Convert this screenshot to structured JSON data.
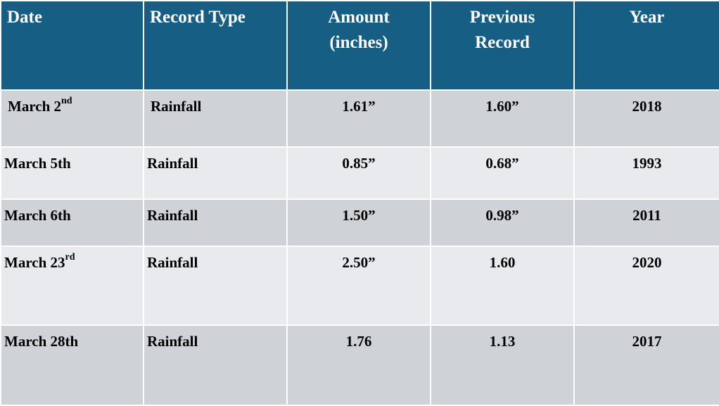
{
  "table": {
    "headers": {
      "date": "Date",
      "record_type": "Record Type",
      "amount_line1": "Amount",
      "amount_line2": "(inches)",
      "previous_line1": "Previous",
      "previous_line2": "Record",
      "year": "Year"
    },
    "rows": [
      {
        "date_main": "March 2",
        "date_suffix": "nd",
        "record_type": "Rainfall",
        "amount": "1.61”",
        "previous": "1.60”",
        "year": "2018"
      },
      {
        "date_main": "March 5th",
        "date_suffix": "",
        "record_type": "Rainfall",
        "amount": "0.85”",
        "previous": "0.68”",
        "year": "1993"
      },
      {
        "date_main": "March 6th",
        "date_suffix": "",
        "record_type": "Rainfall",
        "amount": "1.50”",
        "previous": "0.98”",
        "year": "2011"
      },
      {
        "date_main": "March 23",
        "date_suffix": "rd",
        "record_type": "Rainfall",
        "amount": "2.50”",
        "previous": "1.60",
        "year": "2020"
      },
      {
        "date_main": "March 28th",
        "date_suffix": "",
        "record_type": "Rainfall",
        "amount": "1.76",
        "previous": "1.13",
        "year": "2017"
      }
    ]
  }
}
